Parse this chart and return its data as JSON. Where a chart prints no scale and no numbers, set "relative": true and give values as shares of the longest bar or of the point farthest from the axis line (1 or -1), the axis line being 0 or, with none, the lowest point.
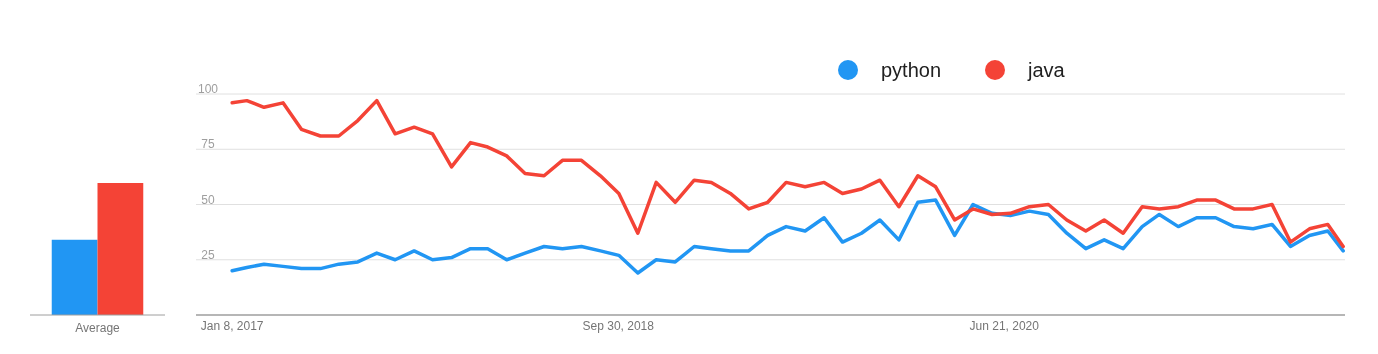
{
  "chart_data": [
    {
      "type": "bar",
      "relative": true,
      "categories": [
        "Average"
      ],
      "series": [
        {
          "color": "#2196f3",
          "values": [
            0.57
          ]
        },
        {
          "color": "#f44336",
          "values": [
            1
          ]
        }
      ]
    },
    {
      "type": "line",
      "legend": "top",
      "grid": "y",
      "ylim": [
        0,
        100
      ],
      "yticks": [
        25,
        50,
        75,
        100
      ],
      "xlim": [
        "2016-11-10",
        "2021-12-29"
      ],
      "xticks": [
        {
          "value": "2017-01-08",
          "label": "Jan 8, 2017"
        },
        {
          "value": "2018-09-30",
          "label": "Sep 30, 2018"
        },
        {
          "value": "2020-06-21",
          "label": "Jun 21, 2020"
        }
      ],
      "x": [
        "2017-01-08",
        "2017-02-01",
        "2017-03-01",
        "2017-04-01",
        "2017-05-01",
        "2017-06-01",
        "2017-07-01",
        "2017-08-01",
        "2017-09-01",
        "2017-10-01",
        "2017-11-01",
        "2017-12-01",
        "2018-01-01",
        "2018-02-01",
        "2018-03-01",
        "2018-04-01",
        "2018-05-01",
        "2018-06-01",
        "2018-07-01",
        "2018-08-01",
        "2018-09-01",
        "2018-10-01",
        "2018-11-01",
        "2018-12-01",
        "2019-01-01",
        "2019-02-01",
        "2019-03-01",
        "2019-04-01",
        "2019-05-01",
        "2019-06-01",
        "2019-07-01",
        "2019-08-01",
        "2019-09-01",
        "2019-10-01",
        "2019-11-01",
        "2019-12-01",
        "2020-01-01",
        "2020-02-01",
        "2020-03-01",
        "2020-04-01",
        "2020-05-01",
        "2020-06-01",
        "2020-07-01",
        "2020-08-01",
        "2020-09-01",
        "2020-10-01",
        "2020-11-01",
        "2020-12-01",
        "2021-01-01",
        "2021-02-01",
        "2021-03-01",
        "2021-04-01",
        "2021-05-01",
        "2021-06-01",
        "2021-07-01",
        "2021-08-01",
        "2021-09-01",
        "2021-10-01",
        "2021-11-01",
        "2021-12-01",
        "2021-12-26"
      ],
      "series": [
        {
          "name": "python",
          "color": "#2196f3",
          "values": [
            20,
            21.5,
            23,
            22,
            21,
            21,
            23,
            24,
            28,
            25,
            29,
            25,
            26,
            30,
            30,
            25,
            28,
            31,
            30,
            31,
            29,
            27,
            19,
            25,
            24,
            31,
            30,
            29,
            29,
            36,
            40,
            38,
            44,
            33,
            37,
            43,
            34,
            51,
            52,
            36,
            50,
            46,
            45,
            47,
            45.5,
            37,
            30,
            34,
            30,
            40,
            45.5,
            40,
            44,
            44,
            40,
            39,
            41,
            31,
            36,
            38,
            29
          ]
        },
        {
          "name": "java",
          "color": "#f44336",
          "values": [
            96,
            97,
            94,
            96,
            84,
            81,
            81,
            88,
            97,
            82,
            85,
            82,
            67,
            78,
            76,
            72,
            64,
            63,
            70,
            70,
            63,
            55,
            37,
            60,
            51,
            61,
            60,
            55,
            48,
            51,
            60,
            58,
            60,
            55,
            57,
            61,
            49,
            63,
            58,
            43,
            48,
            45.5,
            46,
            49,
            50,
            43,
            38,
            43,
            37,
            49,
            48,
            49,
            52,
            52,
            48,
            48,
            50,
            33,
            39,
            41,
            31
          ]
        }
      ]
    }
  ]
}
